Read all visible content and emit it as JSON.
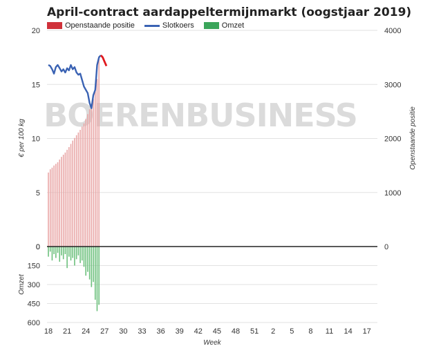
{
  "chart_data": {
    "type": "line",
    "title": "April-contract aardappeltermijnmarkt (oogstjaar 2019)",
    "legend": {
      "placement": "top-left",
      "items": [
        {
          "key": "open_interest",
          "label": "Openstaande positie",
          "color": "#d0313a"
        },
        {
          "key": "close",
          "label": "Slotkoers",
          "color": "#3a62b3"
        },
        {
          "key": "volume",
          "label": "Omzet",
          "color": "#3aa55a"
        }
      ]
    },
    "ylabel_left": "€ per 100 kg",
    "ylabel_right": "Openstaande positie",
    "ylabel_lower": "Omzet",
    "xlabel": "Week",
    "watermark": "BOERENBUSINESS",
    "x_ticks": [
      "18",
      "21",
      "24",
      "27",
      "30",
      "33",
      "36",
      "39",
      "42",
      "45",
      "48",
      "51",
      "2",
      "5",
      "8",
      "11",
      "14",
      "17"
    ],
    "y_left_ticks": [
      "20",
      "15",
      "10",
      "5",
      "0"
    ],
    "y_right_ticks": [
      "4000",
      "3000",
      "2000",
      "1000",
      "0"
    ],
    "y_lower_ticks": [
      "0",
      "150",
      "300",
      "450",
      "600"
    ],
    "ylim_left": [
      0,
      20
    ],
    "ylim_right": [
      0,
      4000
    ],
    "ylim_lower": [
      0,
      600
    ],
    "grid": true,
    "series": [
      {
        "key": "close",
        "name": "Slotkoers",
        "x": [
          18,
          18.3,
          18.6,
          18.9,
          19.2,
          19.5,
          19.8,
          20.1,
          20.4,
          20.7,
          21,
          21.3,
          21.6,
          21.9,
          22.2,
          22.5,
          22.8,
          23.1,
          23.4,
          23.7,
          24,
          24.3,
          24.6,
          24.9,
          25.2,
          25.5,
          25.8,
          26.1,
          26.4
        ],
        "values": [
          16.8,
          16.7,
          16.4,
          16.0,
          16.6,
          16.8,
          16.5,
          16.2,
          16.4,
          16.1,
          16.5,
          16.3,
          16.8,
          16.4,
          16.6,
          16.1,
          15.9,
          16.0,
          15.4,
          14.8,
          14.5,
          14.2,
          13.3,
          12.8,
          14.0,
          14.5,
          16.8,
          17.5,
          17.7
        ]
      },
      {
        "key": "close_recent",
        "name": "Slotkoers",
        "x": [
          26.4,
          26.7,
          27.0,
          27.3
        ],
        "values": [
          17.7,
          17.5,
          17.1,
          16.7
        ]
      },
      {
        "key": "open_interest",
        "name": "Openstaande positie",
        "x": [
          18,
          18.3,
          18.6,
          18.9,
          19.2,
          19.5,
          19.8,
          20.1,
          20.4,
          20.7,
          21,
          21.3,
          21.6,
          21.9,
          22.2,
          22.5,
          22.8,
          23.1,
          23.4,
          23.7,
          24,
          24.3,
          24.6,
          24.9,
          25.2,
          25.5,
          25.8,
          26.1
        ],
        "values": [
          1370,
          1430,
          1460,
          1500,
          1530,
          1560,
          1610,
          1660,
          1700,
          1740,
          1790,
          1840,
          1900,
          1960,
          2010,
          2060,
          2110,
          2160,
          2220,
          2280,
          2360,
          2450,
          2540,
          2630,
          2730,
          2900,
          3100,
          3520
        ]
      },
      {
        "key": "volume",
        "name": "Omzet",
        "x": [
          18,
          18.3,
          18.6,
          18.9,
          19.2,
          19.5,
          19.8,
          20.1,
          20.4,
          20.7,
          21,
          21.3,
          21.6,
          21.9,
          22.2,
          22.5,
          22.8,
          23.1,
          23.4,
          23.7,
          24,
          24.3,
          24.6,
          24.9,
          25.2,
          25.5,
          25.8,
          26.1
        ],
        "values": [
          80,
          40,
          110,
          60,
          90,
          50,
          120,
          70,
          100,
          60,
          170,
          80,
          110,
          90,
          150,
          100,
          70,
          130,
          110,
          160,
          230,
          200,
          260,
          320,
          280,
          420,
          510,
          460
        ]
      }
    ]
  }
}
